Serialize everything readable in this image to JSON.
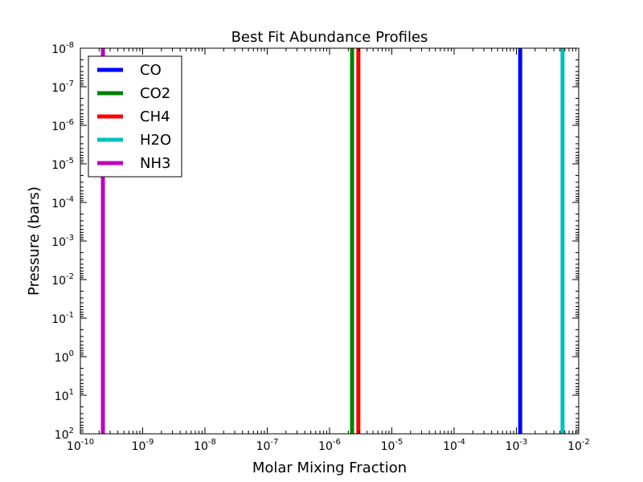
{
  "chart_data": {
    "type": "line",
    "title": "Best Fit Abundance Profiles",
    "xlabel": "Molar Mixing Fraction",
    "ylabel": "Pressure (bars)",
    "x_scale": "log",
    "y_scale": "log",
    "y_inverted": true,
    "xlim": [
      1e-10,
      0.01
    ],
    "ylim": [
      100,
      1e-08
    ],
    "x_ticks": [
      {
        "base": "10",
        "exp": "-10",
        "value": 1e-10
      },
      {
        "base": "10",
        "exp": "-9",
        "value": 1e-09
      },
      {
        "base": "10",
        "exp": "-8",
        "value": 1e-08
      },
      {
        "base": "10",
        "exp": "-7",
        "value": 1e-07
      },
      {
        "base": "10",
        "exp": "-6",
        "value": 1e-06
      },
      {
        "base": "10",
        "exp": "-5",
        "value": 1e-05
      },
      {
        "base": "10",
        "exp": "-4",
        "value": 0.0001
      },
      {
        "base": "10",
        "exp": "-3",
        "value": 0.001
      },
      {
        "base": "10",
        "exp": "-2",
        "value": 0.01
      }
    ],
    "y_ticks": [
      {
        "base": "10",
        "exp": "-8",
        "value": 1e-08
      },
      {
        "base": "10",
        "exp": "-7",
        "value": 1e-07
      },
      {
        "base": "10",
        "exp": "-6",
        "value": 1e-06
      },
      {
        "base": "10",
        "exp": "-5",
        "value": 1e-05
      },
      {
        "base": "10",
        "exp": "-4",
        "value": 0.0001
      },
      {
        "base": "10",
        "exp": "-3",
        "value": 0.001
      },
      {
        "base": "10",
        "exp": "-2",
        "value": 0.01
      },
      {
        "base": "10",
        "exp": "-1",
        "value": 0.1
      },
      {
        "base": "10",
        "exp": "0",
        "value": 1
      },
      {
        "base": "10",
        "exp": "1",
        "value": 10
      },
      {
        "base": "10",
        "exp": "2",
        "value": 100
      }
    ],
    "grid": false,
    "legend_position": "top-left",
    "series": [
      {
        "name": "CO",
        "color": "#0000ff",
        "x": [
          0.00115,
          0.00115
        ],
        "y": [
          100,
          1e-08
        ]
      },
      {
        "name": "CO2",
        "color": "#008000",
        "x": [
          2.3e-06,
          2.3e-06
        ],
        "y": [
          100,
          1e-08
        ]
      },
      {
        "name": "CH4",
        "color": "#ff0000",
        "x": [
          2.9e-06,
          2.9e-06
        ],
        "y": [
          100,
          1e-08
        ]
      },
      {
        "name": "H2O",
        "color": "#00bfbf",
        "x": [
          0.0055,
          0.0055
        ],
        "y": [
          100,
          1e-08
        ]
      },
      {
        "name": "NH3",
        "color": "#bf00bf",
        "x": [
          2.3e-10,
          2.3e-10
        ],
        "y": [
          100,
          1e-08
        ]
      }
    ]
  }
}
